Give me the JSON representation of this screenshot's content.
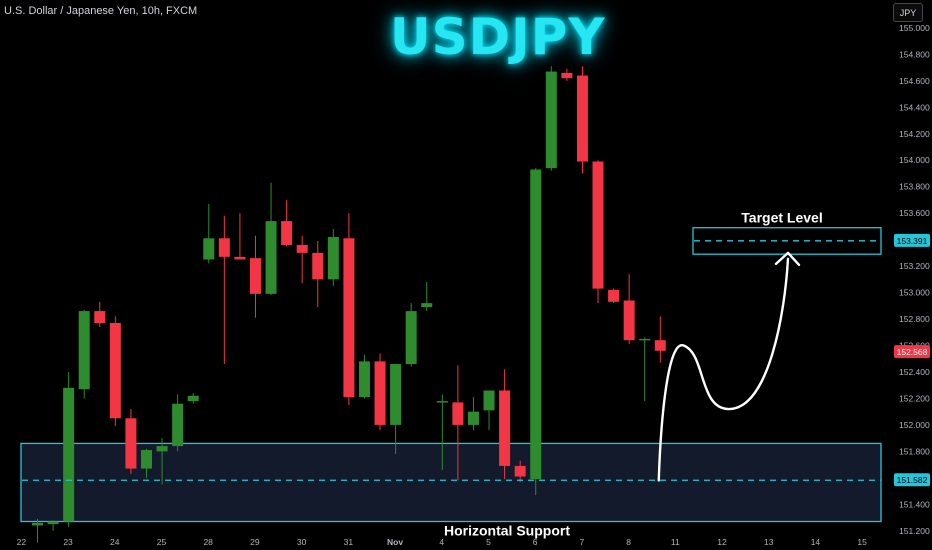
{
  "header": {
    "symbol_info": "U.S. Dollar / Japanese Yen, 10h, FXCM",
    "currency_label": "JPY",
    "title": "USDJPY"
  },
  "colors": {
    "background": "#000000",
    "up": "#2e8b2e",
    "down": "#f23645",
    "zone_stroke": "#26c6da",
    "zone_fill": "#131a2c",
    "price_tag_target": "#26c6da",
    "price_tag_current": "#f23645",
    "axis_text": "#b2b5be",
    "arrow": "#ffffff"
  },
  "chart_data": {
    "type": "candlestick",
    "y_axis": {
      "side": "right",
      "ylim": [
        151.1,
        155.12
      ],
      "ticks": [
        "151.200",
        "151.400",
        "151.600",
        "151.800",
        "152.000",
        "152.200",
        "152.400",
        "152.600",
        "152.800",
        "153.000",
        "153.200",
        "153.400",
        "153.600",
        "153.800",
        "154.000",
        "154.200",
        "154.400",
        "154.600",
        "154.800",
        "155.000"
      ]
    },
    "x_axis": {
      "ticks": [
        {
          "label": "22",
          "i": -2
        },
        {
          "label": "23",
          "i": 1
        },
        {
          "label": "24",
          "i": 4
        },
        {
          "label": "25",
          "i": 7
        },
        {
          "label": "28",
          "i": 10
        },
        {
          "label": "29",
          "i": 13
        },
        {
          "label": "30",
          "i": 16
        },
        {
          "label": "31",
          "i": 19
        },
        {
          "label": "Nov",
          "i": 22
        },
        {
          "label": "4",
          "i": 25
        },
        {
          "label": "5",
          "i": 28
        },
        {
          "label": "6",
          "i": 31
        },
        {
          "label": "7",
          "i": 34
        },
        {
          "label": "8",
          "i": 37
        },
        {
          "label": "11",
          "i": 40
        },
        {
          "label": "12",
          "i": 43
        },
        {
          "label": "13",
          "i": 46
        },
        {
          "label": "14",
          "i": 49
        },
        {
          "label": "15",
          "i": 52
        }
      ]
    },
    "candles": [
      {
        "o": 151.24,
        "h": 151.29,
        "l": 151.11,
        "c": 151.26
      },
      {
        "o": 151.25,
        "h": 151.28,
        "l": 151.2,
        "c": 151.27
      },
      {
        "o": 151.27,
        "h": 152.4,
        "l": 151.23,
        "c": 152.28
      },
      {
        "o": 152.27,
        "h": 152.87,
        "l": 152.2,
        "c": 152.86
      },
      {
        "o": 152.86,
        "h": 152.93,
        "l": 152.74,
        "c": 152.77
      },
      {
        "o": 152.77,
        "h": 152.82,
        "l": 151.99,
        "c": 152.05
      },
      {
        "o": 152.05,
        "h": 152.12,
        "l": 151.63,
        "c": 151.67
      },
      {
        "o": 151.67,
        "h": 151.82,
        "l": 151.6,
        "c": 151.81
      },
      {
        "o": 151.8,
        "h": 151.9,
        "l": 151.55,
        "c": 151.84
      },
      {
        "o": 151.84,
        "h": 152.23,
        "l": 151.8,
        "c": 152.16
      },
      {
        "o": 152.18,
        "h": 152.24,
        "l": 152.16,
        "c": 152.22
      },
      {
        "o": 153.25,
        "h": 153.67,
        "l": 153.22,
        "c": 153.41
      },
      {
        "o": 153.41,
        "h": 153.58,
        "l": 152.46,
        "c": 153.27
      },
      {
        "o": 153.27,
        "h": 153.6,
        "l": 153.25,
        "c": 153.25
      },
      {
        "o": 153.26,
        "h": 153.43,
        "l": 152.81,
        "c": 152.99
      },
      {
        "o": 152.99,
        "h": 153.83,
        "l": 152.98,
        "c": 153.54
      },
      {
        "o": 153.54,
        "h": 153.7,
        "l": 153.35,
        "c": 153.36
      },
      {
        "o": 153.36,
        "h": 153.43,
        "l": 153.07,
        "c": 153.3
      },
      {
        "o": 153.3,
        "h": 153.39,
        "l": 152.89,
        "c": 153.1
      },
      {
        "o": 153.1,
        "h": 153.48,
        "l": 153.05,
        "c": 153.42
      },
      {
        "o": 153.41,
        "h": 153.6,
        "l": 152.15,
        "c": 152.21
      },
      {
        "o": 152.21,
        "h": 152.53,
        "l": 152.2,
        "c": 152.48
      },
      {
        "o": 152.48,
        "h": 152.54,
        "l": 151.96,
        "c": 152.0
      },
      {
        "o": 152.0,
        "h": 152.46,
        "l": 151.78,
        "c": 152.46
      },
      {
        "o": 152.46,
        "h": 152.92,
        "l": 152.44,
        "c": 152.86
      },
      {
        "o": 152.89,
        "h": 153.08,
        "l": 152.86,
        "c": 152.92
      },
      {
        "o": 152.17,
        "h": 152.23,
        "l": 151.66,
        "c": 152.18
      },
      {
        "o": 152.17,
        "h": 152.45,
        "l": 151.58,
        "c": 152.0
      },
      {
        "o": 152.0,
        "h": 152.21,
        "l": 151.96,
        "c": 152.1
      },
      {
        "o": 152.11,
        "h": 152.26,
        "l": 151.96,
        "c": 152.26
      },
      {
        "o": 152.26,
        "h": 152.42,
        "l": 151.59,
        "c": 151.69
      },
      {
        "o": 151.69,
        "h": 151.73,
        "l": 151.57,
        "c": 151.61
      },
      {
        "o": 151.59,
        "h": 153.94,
        "l": 151.47,
        "c": 153.93
      },
      {
        "o": 153.94,
        "h": 154.71,
        "l": 153.92,
        "c": 154.67
      },
      {
        "o": 154.66,
        "h": 154.69,
        "l": 154.6,
        "c": 154.62
      },
      {
        "o": 154.64,
        "h": 154.71,
        "l": 153.9,
        "c": 153.99
      },
      {
        "o": 153.99,
        "h": 154.0,
        "l": 152.92,
        "c": 153.03
      },
      {
        "o": 153.02,
        "h": 153.03,
        "l": 152.92,
        "c": 152.93
      },
      {
        "o": 152.94,
        "h": 153.14,
        "l": 152.61,
        "c": 152.64
      },
      {
        "o": 152.65,
        "h": 152.66,
        "l": 152.18,
        "c": 152.65
      },
      {
        "o": 152.64,
        "h": 152.82,
        "l": 152.47,
        "c": 152.56
      }
    ],
    "annotations": {
      "title": "USDJPY",
      "target_label": "Target Level",
      "support_label": "Horizontal Support",
      "target_price_tag": "153.391",
      "current_price_tag": "152.568",
      "support_price_tag": "151.582",
      "target_zone": {
        "y_low": 153.29,
        "y_high": 153.49,
        "line": 153.391
      },
      "support_zone": {
        "y_low": 151.27,
        "y_high": 151.86,
        "line": 151.582
      },
      "projection": [
        {
          "i": 39.9,
          "y": 151.58
        },
        {
          "i": 41.5,
          "y": 152.6
        },
        {
          "i": 44.4,
          "y": 152.12
        },
        {
          "i": 48.2,
          "y": 153.3
        }
      ]
    }
  }
}
